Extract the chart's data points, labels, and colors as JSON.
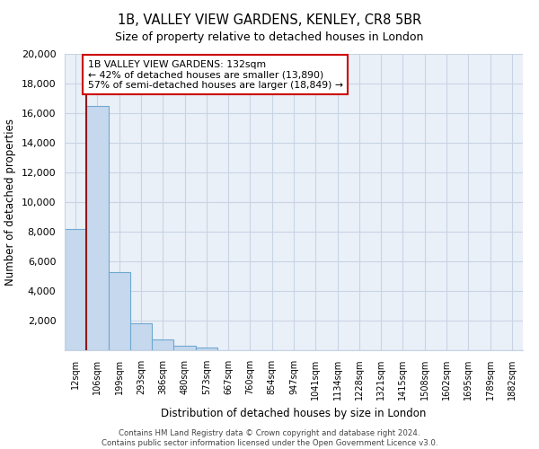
{
  "title": "1B, VALLEY VIEW GARDENS, KENLEY, CR8 5BR",
  "subtitle": "Size of property relative to detached houses in London",
  "xlabel": "Distribution of detached houses by size in London",
  "ylabel": "Number of detached properties",
  "bar_labels": [
    "12sqm",
    "106sqm",
    "199sqm",
    "293sqm",
    "386sqm",
    "480sqm",
    "573sqm",
    "667sqm",
    "760sqm",
    "854sqm",
    "947sqm",
    "1041sqm",
    "1134sqm",
    "1228sqm",
    "1321sqm",
    "1415sqm",
    "1508sqm",
    "1602sqm",
    "1695sqm",
    "1789sqm",
    "1882sqm"
  ],
  "bar_values": [
    8200,
    16500,
    5300,
    1800,
    750,
    280,
    180,
    0,
    0,
    0,
    0,
    0,
    0,
    0,
    0,
    0,
    0,
    0,
    0,
    0,
    0
  ],
  "bar_color": "#c5d8ed",
  "bar_edge_color": "#6fa8d0",
  "annotation_title": "1B VALLEY VIEW GARDENS: 132sqm",
  "annotation_line1": "← 42% of detached houses are smaller (13,890)",
  "annotation_line2": "57% of semi-detached houses are larger (18,849) →",
  "property_line_color": "#8b1a1a",
  "ylim": [
    0,
    20000
  ],
  "yticks": [
    0,
    2000,
    4000,
    6000,
    8000,
    10000,
    12000,
    14000,
    16000,
    18000,
    20000
  ],
  "footer_line1": "Contains HM Land Registry data © Crown copyright and database right 2024.",
  "footer_line2": "Contains public sector information licensed under the Open Government Licence v3.0.",
  "background_color": "#ffffff",
  "plot_bg_color": "#eaf0f8",
  "grid_color": "#c8d4e4"
}
